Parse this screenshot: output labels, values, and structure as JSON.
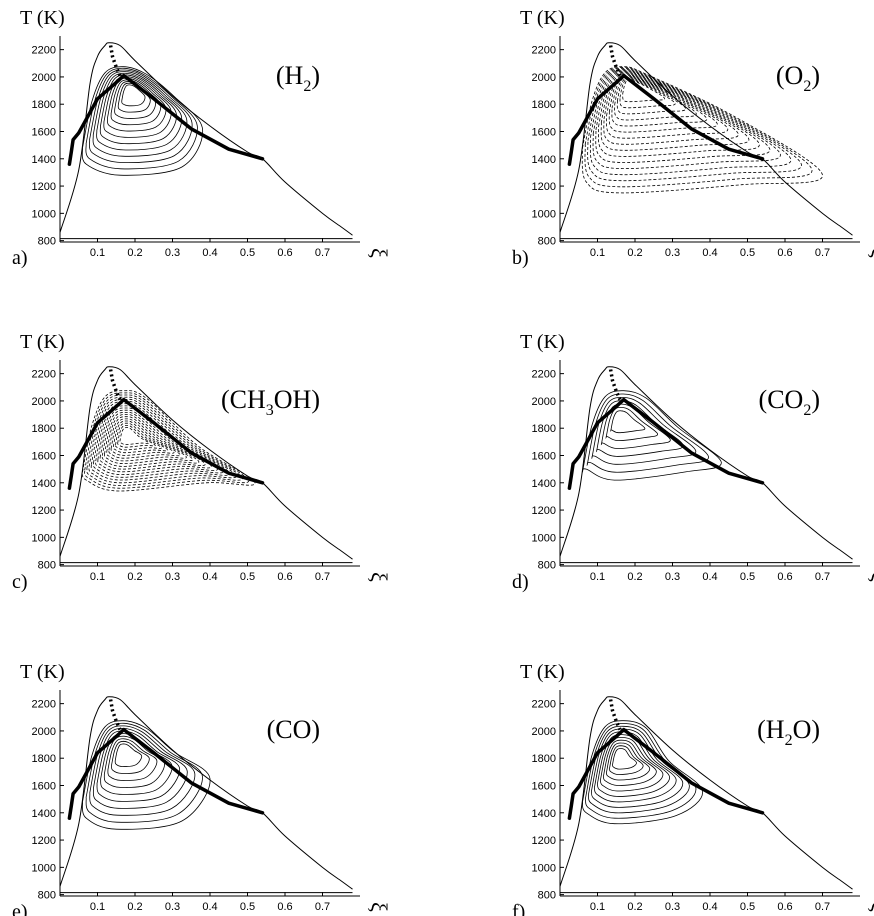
{
  "figure": {
    "background": "#ffffff",
    "ink": "#000000"
  },
  "chart_data": [
    {
      "type": "line",
      "panel_label": "a)",
      "species": {
        "pre": "(H",
        "sub": "2",
        "post": ")"
      },
      "contour_style": "solid",
      "ylabel": "T (K)",
      "xlabel": "ξ",
      "yticks": [
        "800",
        "1000",
        "1200",
        "1400",
        "1600",
        "1800",
        "2000",
        "2200"
      ],
      "xticks": [
        "0.1",
        "0.2",
        "0.3",
        "0.4",
        "0.5",
        "0.6",
        "0.7"
      ],
      "xlim": [
        0,
        0.8
      ],
      "ylim": [
        790,
        2300
      ],
      "series": [
        {
          "role": "envelope",
          "x": [
            0.0,
            0.05,
            0.08,
            0.1,
            0.12,
            0.13,
            0.16,
            0.2,
            0.3,
            0.4,
            0.5,
            0.54,
            0.6,
            0.7,
            0.75,
            0.78
          ],
          "y": [
            860,
            1320,
            1950,
            2150,
            2230,
            2250,
            2230,
            2120,
            1860,
            1640,
            1450,
            1400,
            1230,
            1000,
            900,
            840
          ]
        },
        {
          "role": "baseline",
          "x": [
            0.0,
            0.78
          ],
          "y": [
            815,
            815
          ]
        },
        {
          "role": "thick-path",
          "x": [
            0.025,
            0.03,
            0.035,
            0.05,
            0.1,
            0.15,
            0.17,
            0.25,
            0.35,
            0.45,
            0.54
          ],
          "y": [
            1360,
            1450,
            1540,
            1590,
            1840,
            1960,
            2010,
            1840,
            1620,
            1470,
            1400
          ]
        },
        {
          "role": "dotted",
          "x": [
            0.135,
            0.14,
            0.15,
            0.16
          ],
          "y": [
            2230,
            2150,
            2070,
            2010
          ]
        }
      ],
      "contours": {
        "center": [
          0.19,
          1910
        ],
        "peak_x": 0.38,
        "peak_y": 1620,
        "levels": 12,
        "outer_min": 1280
      }
    },
    {
      "type": "line",
      "panel_label": "b)",
      "species": {
        "pre": "(O",
        "sub": "2",
        "post": ")"
      },
      "contour_style": "dashed",
      "ylabel": "T (K)",
      "xlabel": "ξ",
      "yticks": [
        "800",
        "1000",
        "1200",
        "1400",
        "1600",
        "1800",
        "2000",
        "2200"
      ],
      "xticks": [
        "0.1",
        "0.2",
        "0.3",
        "0.4",
        "0.5",
        "0.6",
        "0.7"
      ],
      "xlim": [
        0,
        0.8
      ],
      "ylim": [
        790,
        2300
      ],
      "series": [
        {
          "role": "envelope",
          "x": [
            0.0,
            0.05,
            0.08,
            0.1,
            0.12,
            0.13,
            0.16,
            0.2,
            0.3,
            0.4,
            0.5,
            0.54,
            0.6,
            0.7,
            0.75,
            0.78
          ],
          "y": [
            860,
            1320,
            1950,
            2150,
            2230,
            2250,
            2230,
            2120,
            1860,
            1640,
            1450,
            1400,
            1230,
            1000,
            900,
            840
          ]
        },
        {
          "role": "baseline",
          "x": [
            0.0,
            0.78
          ],
          "y": [
            815,
            815
          ]
        },
        {
          "role": "thick-path",
          "x": [
            0.025,
            0.03,
            0.035,
            0.05,
            0.1,
            0.15,
            0.17,
            0.25,
            0.35,
            0.45,
            0.54
          ],
          "y": [
            1360,
            1450,
            1540,
            1590,
            1840,
            1960,
            2010,
            1840,
            1620,
            1470,
            1400
          ]
        },
        {
          "role": "dotted",
          "x": [
            0.135,
            0.14,
            0.15,
            0.16
          ],
          "y": [
            2230,
            2150,
            2070,
            2010
          ]
        }
      ],
      "contours": {
        "center": [
          0.19,
          1960
        ],
        "peak_x": 0.7,
        "peak_y": 1280,
        "levels": 16,
        "outer_min": 1150
      }
    },
    {
      "type": "line",
      "panel_label": "c)",
      "species": {
        "pre": "(CH",
        "sub": "3",
        "post": "OH)"
      },
      "contour_style": "dashed",
      "ylabel": "T (K)",
      "xlabel": "ξ",
      "yticks": [
        "800",
        "1000",
        "1200",
        "1400",
        "1600",
        "1800",
        "2000",
        "2200"
      ],
      "xticks": [
        "0.1",
        "0.2",
        "0.3",
        "0.4",
        "0.5",
        "0.6",
        "0.7"
      ],
      "xlim": [
        0,
        0.8
      ],
      "ylim": [
        790,
        2300
      ],
      "series": [
        {
          "role": "envelope",
          "x": [
            0.0,
            0.05,
            0.08,
            0.1,
            0.12,
            0.13,
            0.16,
            0.2,
            0.3,
            0.4,
            0.5,
            0.54,
            0.6,
            0.7,
            0.75,
            0.78
          ],
          "y": [
            860,
            1320,
            1950,
            2150,
            2230,
            2250,
            2230,
            2120,
            1860,
            1640,
            1450,
            1400,
            1230,
            1000,
            900,
            840
          ]
        },
        {
          "role": "baseline",
          "x": [
            0.0,
            0.78
          ],
          "y": [
            815,
            815
          ]
        },
        {
          "role": "thick-path",
          "x": [
            0.025,
            0.03,
            0.035,
            0.05,
            0.1,
            0.15,
            0.17,
            0.25,
            0.35,
            0.45,
            0.54
          ],
          "y": [
            1360,
            1450,
            1540,
            1590,
            1840,
            1960,
            2010,
            1840,
            1620,
            1470,
            1400
          ]
        },
        {
          "role": "dotted",
          "x": [
            0.135,
            0.14,
            0.15,
            0.16
          ],
          "y": [
            2230,
            2150,
            2070,
            2010
          ]
        }
      ],
      "contours": {
        "center": [
          0.18,
          1750
        ],
        "peak_x": 0.52,
        "peak_y": 1400,
        "levels": 18,
        "outer_min": 1340
      }
    },
    {
      "type": "line",
      "panel_label": "d)",
      "species": {
        "pre": "(CO",
        "sub": "2",
        "post": ")"
      },
      "contour_style": "solid",
      "ylabel": "T (K)",
      "xlabel": "ξ",
      "yticks": [
        "800",
        "1000",
        "1200",
        "1400",
        "1600",
        "1800",
        "2000",
        "2200"
      ],
      "xticks": [
        "0.1",
        "0.2",
        "0.3",
        "0.4",
        "0.5",
        "0.6",
        "0.7"
      ],
      "xlim": [
        0,
        0.8
      ],
      "ylim": [
        790,
        2300
      ],
      "series": [
        {
          "role": "envelope",
          "x": [
            0.0,
            0.05,
            0.08,
            0.1,
            0.12,
            0.13,
            0.16,
            0.2,
            0.3,
            0.4,
            0.5,
            0.54,
            0.6,
            0.7,
            0.75,
            0.78
          ],
          "y": [
            860,
            1320,
            1950,
            2150,
            2230,
            2250,
            2230,
            2120,
            1860,
            1640,
            1450,
            1400,
            1230,
            1000,
            900,
            840
          ]
        },
        {
          "role": "baseline",
          "x": [
            0.0,
            0.78
          ],
          "y": [
            815,
            815
          ]
        },
        {
          "role": "thick-path",
          "x": [
            0.025,
            0.03,
            0.035,
            0.05,
            0.1,
            0.15,
            0.17,
            0.25,
            0.35,
            0.45,
            0.54
          ],
          "y": [
            1360,
            1450,
            1540,
            1590,
            1840,
            1960,
            2010,
            1840,
            1620,
            1470,
            1400
          ]
        },
        {
          "role": "dotted",
          "x": [
            0.135,
            0.14,
            0.15,
            0.16
          ],
          "y": [
            2230,
            2150,
            2070,
            2010
          ]
        }
      ],
      "contours": {
        "center": [
          0.16,
          1880
        ],
        "peak_x": 0.43,
        "peak_y": 1550,
        "levels": 7,
        "outer_min": 1420
      }
    },
    {
      "type": "line",
      "panel_label": "e)",
      "species": {
        "pre": "(CO)",
        "sub": "",
        "post": ""
      },
      "contour_style": "solid",
      "ylabel": "T (K)",
      "xlabel": "ξ",
      "yticks": [
        "800",
        "1000",
        "1200",
        "1400",
        "1600",
        "1800",
        "2000",
        "2200"
      ],
      "xticks": [
        "0.1",
        "0.2",
        "0.3",
        "0.4",
        "0.5",
        "0.6",
        "0.7"
      ],
      "xlim": [
        0,
        0.8
      ],
      "ylim": [
        790,
        2300
      ],
      "series": [
        {
          "role": "envelope",
          "x": [
            0.0,
            0.05,
            0.08,
            0.1,
            0.12,
            0.13,
            0.16,
            0.2,
            0.3,
            0.4,
            0.5,
            0.54,
            0.6,
            0.7,
            0.75,
            0.78
          ],
          "y": [
            860,
            1320,
            1950,
            2150,
            2230,
            2250,
            2230,
            2120,
            1860,
            1640,
            1450,
            1400,
            1230,
            1000,
            900,
            840
          ]
        },
        {
          "role": "baseline",
          "x": [
            0.0,
            0.78
          ],
          "y": [
            815,
            815
          ]
        },
        {
          "role": "thick-path",
          "x": [
            0.025,
            0.03,
            0.035,
            0.05,
            0.1,
            0.15,
            0.17,
            0.25,
            0.35,
            0.45,
            0.54
          ],
          "y": [
            1360,
            1450,
            1540,
            1590,
            1840,
            1960,
            2010,
            1840,
            1620,
            1470,
            1400
          ]
        },
        {
          "role": "dotted",
          "x": [
            0.135,
            0.14,
            0.15,
            0.16
          ],
          "y": [
            2230,
            2150,
            2070,
            2010
          ]
        }
      ],
      "contours": {
        "center": [
          0.17,
          1860
        ],
        "peak_x": 0.4,
        "peak_y": 1650,
        "levels": 10,
        "outer_min": 1280
      }
    },
    {
      "type": "line",
      "panel_label": "f)",
      "species": {
        "pre": "(H",
        "sub": "2",
        "post": "O)"
      },
      "contour_style": "solid",
      "ylabel": "T (K)",
      "xlabel": "ξ",
      "yticks": [
        "800",
        "1000",
        "1200",
        "1400",
        "1600",
        "1800",
        "2000",
        "2200"
      ],
      "xticks": [
        "0.1",
        "0.2",
        "0.3",
        "0.4",
        "0.5",
        "0.6",
        "0.7"
      ],
      "xlim": [
        0,
        0.8
      ],
      "ylim": [
        790,
        2300
      ],
      "series": [
        {
          "role": "envelope",
          "x": [
            0.0,
            0.05,
            0.08,
            0.1,
            0.12,
            0.13,
            0.16,
            0.2,
            0.3,
            0.4,
            0.5,
            0.54,
            0.6,
            0.7,
            0.75,
            0.78
          ],
          "y": [
            860,
            1320,
            1950,
            2150,
            2230,
            2250,
            2230,
            2120,
            1860,
            1640,
            1450,
            1400,
            1230,
            1000,
            900,
            840
          ]
        },
        {
          "role": "baseline",
          "x": [
            0.0,
            0.78
          ],
          "y": [
            815,
            815
          ]
        },
        {
          "role": "thick-path",
          "x": [
            0.025,
            0.03,
            0.035,
            0.05,
            0.1,
            0.15,
            0.17,
            0.25,
            0.35,
            0.45,
            0.54
          ],
          "y": [
            1360,
            1450,
            1540,
            1590,
            1840,
            1960,
            2010,
            1840,
            1620,
            1470,
            1400
          ]
        },
        {
          "role": "dotted",
          "x": [
            0.135,
            0.14,
            0.15,
            0.16
          ],
          "y": [
            2230,
            2150,
            2070,
            2010
          ]
        }
      ],
      "contours": {
        "center": [
          0.16,
          1820
        ],
        "peak_x": 0.38,
        "peak_y": 1560,
        "levels": 11,
        "outer_min": 1320
      }
    }
  ]
}
